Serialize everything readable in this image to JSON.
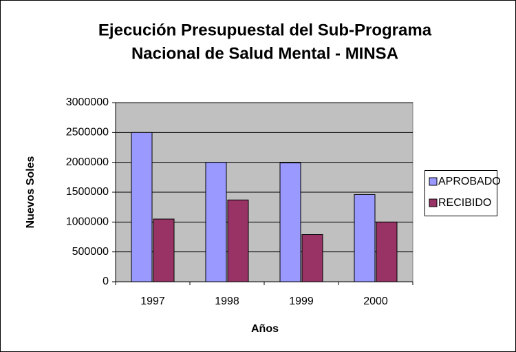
{
  "chart_data": {
    "type": "bar",
    "title": [
      "Ejecución Presupuestal del Sub-Programa",
      "Nacional de Salud Mental - MINSA"
    ],
    "x_label": "Años",
    "y_label": "Nuevos Soles",
    "categories": [
      "1997",
      "1998",
      "1999",
      "2000"
    ],
    "series": [
      {
        "name": "APROBADO",
        "color": "#9999ff",
        "values": [
          2500000,
          2000000,
          1990000,
          1460000
        ]
      },
      {
        "name": "RECIBIDO",
        "color": "#993366",
        "values": [
          1050000,
          1370000,
          790000,
          1000000
        ]
      }
    ],
    "ylim": [
      0,
      3000000
    ],
    "yticks": [
      0,
      500000,
      1000000,
      1500000,
      2000000,
      2500000,
      3000000
    ],
    "grid": true,
    "legend": "right"
  }
}
